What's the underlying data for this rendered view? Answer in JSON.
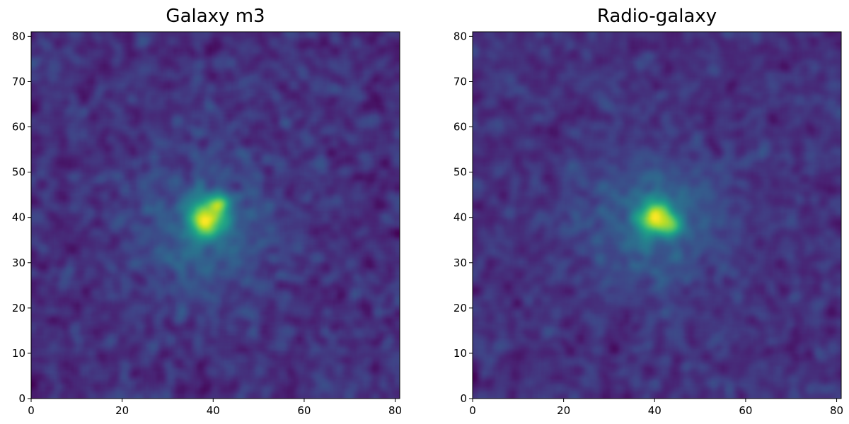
{
  "chart_data": [
    {
      "type": "heatmap",
      "title": "Galaxy m3",
      "xlabel": "",
      "ylabel": "",
      "xlim": [
        0,
        81
      ],
      "ylim": [
        0,
        81
      ],
      "origin": "lower",
      "colormap": "viridis",
      "x_ticks": [
        0,
        20,
        40,
        60,
        80
      ],
      "y_ticks": [
        0,
        10,
        20,
        30,
        40,
        50,
        60,
        70,
        80
      ],
      "grid": false,
      "colorbar": false,
      "noise_level": 0.22,
      "sources": [
        {
          "x": 38.5,
          "y": 39.5,
          "peak": 1.0,
          "sigma_x": 2.6,
          "sigma_y": 3.0
        },
        {
          "x": 41.5,
          "y": 43.0,
          "peak": 0.55,
          "sigma_x": 1.6,
          "sigma_y": 1.8
        },
        {
          "x": 38.0,
          "y": 37.0,
          "peak": 0.3,
          "sigma_x": 10.0,
          "sigma_y": 11.0
        }
      ]
    },
    {
      "type": "heatmap",
      "title": "Radio-galaxy",
      "xlabel": "",
      "ylabel": "",
      "xlim": [
        0,
        81
      ],
      "ylim": [
        0,
        81
      ],
      "origin": "lower",
      "colormap": "viridis",
      "x_ticks": [
        0,
        20,
        40,
        60,
        80
      ],
      "y_ticks": [
        0,
        10,
        20,
        30,
        40,
        50,
        60,
        70,
        80
      ],
      "grid": false,
      "colorbar": false,
      "noise_level": 0.22,
      "sources": [
        {
          "x": 40.5,
          "y": 40.0,
          "peak": 1.0,
          "sigma_x": 2.7,
          "sigma_y": 2.5
        },
        {
          "x": 44.0,
          "y": 37.5,
          "peak": 0.4,
          "sigma_x": 1.6,
          "sigma_y": 1.4
        },
        {
          "x": 40.0,
          "y": 39.0,
          "peak": 0.3,
          "sigma_x": 11.0,
          "sigma_y": 10.0
        }
      ]
    }
  ],
  "colors": {
    "viridis_low": "#440154",
    "viridis_mid": "#21918c",
    "viridis_high": "#fde725",
    "axis": "#000000",
    "background": "#ffffff"
  }
}
